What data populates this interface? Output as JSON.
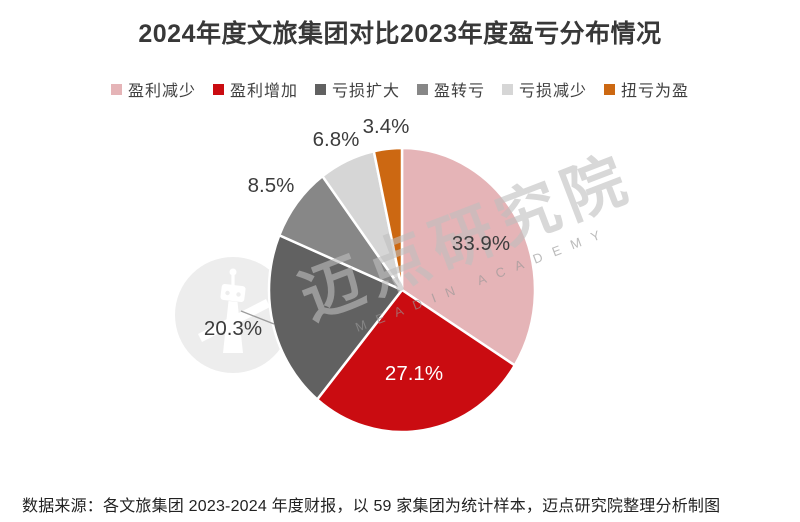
{
  "title": "2024年度文旅集团对比2023年度盈亏分布情况",
  "source_note": "数据来源：各文旅集团 2023-2024 年度财报，以 59 家集团为统计样本，迈点研究院整理分析制图",
  "watermark": {
    "text": "迈点研究院",
    "subtext": "MEADIN ACADEMY"
  },
  "chart_data": {
    "type": "pie",
    "title": "2024年度文旅集团对比2023年度盈亏分布情况",
    "legend_position": "top",
    "start_angle_deg": 0,
    "direction": "clockwise",
    "slice_border_color": "#FFFFFF",
    "series": [
      {
        "name": "盈利减少",
        "value": 33.9,
        "label": "33.9%",
        "color": "#E5B4B7",
        "label_color": "#3C3C3C",
        "label_placement": "inside"
      },
      {
        "name": "盈利增加",
        "value": 27.1,
        "label": "27.1%",
        "color": "#CA0C11",
        "label_color": "#FFFFFF",
        "label_placement": "inside"
      },
      {
        "name": "亏损扩大",
        "value": 20.3,
        "label": "20.3%",
        "color": "#616161",
        "label_color": "#3C3C3C",
        "label_placement": "outside-leader"
      },
      {
        "name": "盈转亏",
        "value": 8.5,
        "label": "8.5%",
        "color": "#878787",
        "label_color": "#3C3C3C",
        "label_placement": "outside"
      },
      {
        "name": "亏损减少",
        "value": 6.8,
        "label": "6.8%",
        "color": "#D6D6D6",
        "label_color": "#3C3C3C",
        "label_placement": "outside"
      },
      {
        "name": "扭亏为盈",
        "value": 3.4,
        "label": "3.4%",
        "color": "#CC6812",
        "label_color": "#3C3C3C",
        "label_placement": "outside"
      }
    ]
  }
}
